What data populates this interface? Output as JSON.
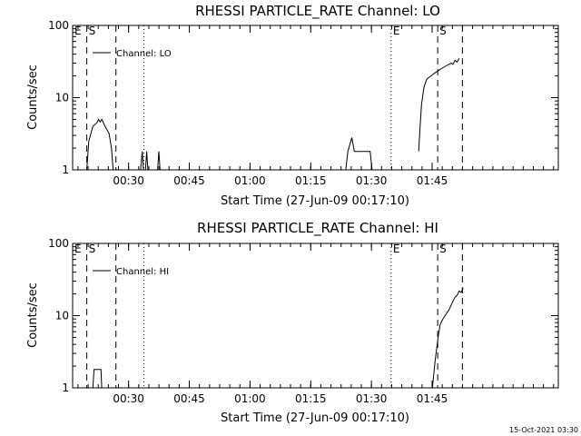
{
  "chart_data": [
    {
      "type": "line",
      "title": "RHESSI PARTICLE_RATE Channel: LO",
      "xlabel": "Start Time (27-Jun-09 00:17:10)",
      "ylabel": "Counts/sec",
      "yscale": "log",
      "ylim": [
        1,
        100
      ],
      "xlim_minutes": [
        0,
        120
      ],
      "xticks": [
        {
          "m": 13.83,
          "label": "00:30"
        },
        {
          "m": 28.83,
          "label": "00:45"
        },
        {
          "m": 43.83,
          "label": "01:00"
        },
        {
          "m": 58.83,
          "label": "01:15"
        },
        {
          "m": 73.83,
          "label": "01:30"
        },
        {
          "m": 88.83,
          "label": "01:45"
        }
      ],
      "yticks": [
        {
          "v": 1,
          "label": "1"
        },
        {
          "v": 10,
          "label": "10"
        },
        {
          "v": 100,
          "label": "100"
        }
      ],
      "markers": [
        {
          "m": 0.0,
          "label": "E",
          "style": "dotted"
        },
        {
          "m": 3.5,
          "label": "S",
          "style": "dashed"
        },
        {
          "m": 10.7,
          "label": "",
          "style": "dashed"
        },
        {
          "m": 17.6,
          "label": "",
          "style": "dotted"
        },
        {
          "m": 78.7,
          "label": "E",
          "style": "dotted"
        },
        {
          "m": 90.2,
          "label": "S",
          "style": "dashed"
        },
        {
          "m": 96.3,
          "label": "",
          "style": "dashed"
        }
      ],
      "legend": "Channel: LO",
      "series": [
        {
          "segments": [
            [
              [
                3.5,
                1
              ],
              [
                4.0,
                2.5
              ],
              [
                5.0,
                4.0
              ],
              [
                6.0,
                4.5
              ],
              [
                6.4,
                5.0
              ],
              [
                6.8,
                4.6
              ],
              [
                7.2,
                5.0
              ],
              [
                7.6,
                4.5
              ],
              [
                8.0,
                4.0
              ],
              [
                9.0,
                3.2
              ],
              [
                9.6,
                2.0
              ],
              [
                10.0,
                1
              ]
            ],
            [
              [
                16.8,
                1
              ],
              [
                17.2,
                1.8
              ],
              [
                17.5,
                1
              ]
            ],
            [
              [
                18.0,
                1
              ],
              [
                18.3,
                1.8
              ],
              [
                18.6,
                1
              ]
            ],
            [
              [
                21.0,
                1
              ],
              [
                21.3,
                1.8
              ],
              [
                21.6,
                1
              ]
            ],
            [
              [
                67.5,
                1
              ],
              [
                68.0,
                1.8
              ],
              [
                69.0,
                2.8
              ],
              [
                69.6,
                1.8
              ],
              [
                72.5,
                1.8
              ],
              [
                73.5,
                1.8
              ],
              [
                74.0,
                1
              ]
            ],
            [
              [
                85.5,
                1.8
              ],
              [
                85.8,
                3.5
              ],
              [
                86.2,
                8.0
              ],
              [
                86.8,
                14
              ],
              [
                87.5,
                18
              ],
              [
                88.5,
                20
              ],
              [
                89.5,
                22
              ],
              [
                90.5,
                24
              ],
              [
                91.5,
                26
              ],
              [
                92.5,
                28
              ],
              [
                93.5,
                30
              ],
              [
                94.0,
                29
              ],
              [
                94.5,
                33
              ],
              [
                95.0,
                31
              ],
              [
                95.5,
                35
              ]
            ]
          ]
        }
      ]
    },
    {
      "type": "line",
      "title": "RHESSI PARTICLE_RATE Channel: HI",
      "xlabel": "Start Time (27-Jun-09 00:17:10)",
      "ylabel": "Counts/sec",
      "yscale": "log",
      "ylim": [
        1,
        100
      ],
      "xlim_minutes": [
        0,
        120
      ],
      "xticks": [
        {
          "m": 13.83,
          "label": "00:30"
        },
        {
          "m": 28.83,
          "label": "00:45"
        },
        {
          "m": 43.83,
          "label": "01:00"
        },
        {
          "m": 58.83,
          "label": "01:15"
        },
        {
          "m": 73.83,
          "label": "01:30"
        },
        {
          "m": 88.83,
          "label": "01:45"
        }
      ],
      "yticks": [
        {
          "v": 1,
          "label": "1"
        },
        {
          "v": 10,
          "label": "10"
        },
        {
          "v": 100,
          "label": "100"
        }
      ],
      "markers": [
        {
          "m": 0.0,
          "label": "E",
          "style": "dotted"
        },
        {
          "m": 3.5,
          "label": "S",
          "style": "dashed"
        },
        {
          "m": 10.7,
          "label": "",
          "style": "dashed"
        },
        {
          "m": 17.6,
          "label": "",
          "style": "dotted"
        },
        {
          "m": 78.7,
          "label": "E",
          "style": "dotted"
        },
        {
          "m": 90.2,
          "label": "S",
          "style": "dashed"
        },
        {
          "m": 96.3,
          "label": "",
          "style": "dashed"
        }
      ],
      "legend": "Channel: HI",
      "series": [
        {
          "segments": [
            [
              [
                5.0,
                1
              ],
              [
                5.3,
                1.8
              ],
              [
                7.0,
                1.8
              ],
              [
                7.2,
                1
              ]
            ],
            [
              [
                88.9,
                1
              ],
              [
                89.6,
                2.5
              ],
              [
                90.3,
                5.0
              ],
              [
                90.8,
                7.5
              ],
              [
                91.5,
                9.0
              ],
              [
                92.5,
                11
              ],
              [
                93.0,
                12
              ],
              [
                93.5,
                14
              ],
              [
                94.0,
                16
              ],
              [
                94.5,
                18
              ],
              [
                95.0,
                19
              ],
              [
                95.5,
                22
              ],
              [
                96.0,
                21
              ],
              [
                96.5,
                24
              ]
            ]
          ]
        }
      ]
    }
  ],
  "footer": {
    "timestamp": "15-Oct-2021 03:30"
  }
}
